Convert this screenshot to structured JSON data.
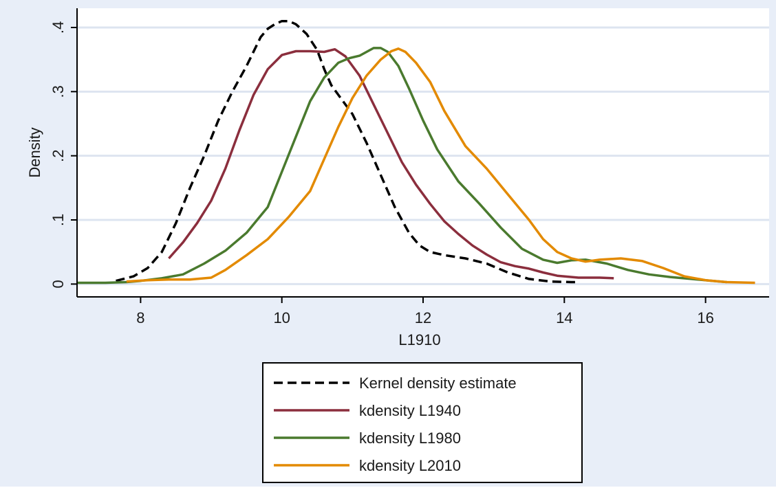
{
  "chart_data": {
    "type": "line",
    "title": "",
    "xlabel": "L1910",
    "ylabel": "Density",
    "xlim": [
      7.1,
      16.9
    ],
    "ylim": [
      -0.02,
      0.43
    ],
    "xticks": [
      8,
      10,
      12,
      14,
      16
    ],
    "xtick_labels": [
      "8",
      "10",
      "12",
      "14",
      "16"
    ],
    "yticks": [
      0,
      0.1,
      0.2,
      0.3,
      0.4
    ],
    "ytick_labels": [
      "0",
      ".1",
      ".2",
      ".3",
      ".4"
    ],
    "grid": true,
    "legend_placement": "bottom-center",
    "colors": {
      "plot_region": "#ffffff",
      "outer_background": "#e8eef8",
      "grid": "#dde4f0"
    },
    "series": [
      {
        "name": "Kernel density estimate",
        "color": "#000000",
        "dash": true,
        "x": [
          7.65,
          7.9,
          8.1,
          8.3,
          8.5,
          8.7,
          8.9,
          9.1,
          9.3,
          9.5,
          9.7,
          9.8,
          9.9,
          10.0,
          10.1,
          10.2,
          10.35,
          10.5,
          10.6,
          10.7,
          10.8,
          11.0,
          11.2,
          11.4,
          11.6,
          11.8,
          11.95,
          12.1,
          12.3,
          12.6,
          12.9,
          13.2,
          13.5,
          13.8,
          14.1,
          14.2
        ],
        "y": [
          0.005,
          0.012,
          0.025,
          0.05,
          0.095,
          0.15,
          0.2,
          0.255,
          0.3,
          0.34,
          0.385,
          0.398,
          0.405,
          0.41,
          0.41,
          0.405,
          0.39,
          0.365,
          0.335,
          0.31,
          0.295,
          0.265,
          0.22,
          0.17,
          0.12,
          0.08,
          0.06,
          0.05,
          0.045,
          0.04,
          0.032,
          0.018,
          0.008,
          0.004,
          0.003,
          0.003
        ]
      },
      {
        "name": "kdensity L1940",
        "color": "#8b2e3d",
        "dash": false,
        "x": [
          8.4,
          8.6,
          8.8,
          9.0,
          9.2,
          9.4,
          9.6,
          9.8,
          10.0,
          10.2,
          10.4,
          10.6,
          10.75,
          10.9,
          11.1,
          11.3,
          11.5,
          11.7,
          11.9,
          12.1,
          12.3,
          12.5,
          12.7,
          12.9,
          13.1,
          13.3,
          13.5,
          13.7,
          13.9,
          14.2,
          14.5,
          14.7
        ],
        "y": [
          0.04,
          0.065,
          0.095,
          0.13,
          0.18,
          0.24,
          0.295,
          0.335,
          0.357,
          0.363,
          0.363,
          0.362,
          0.366,
          0.355,
          0.325,
          0.28,
          0.235,
          0.19,
          0.155,
          0.125,
          0.098,
          0.078,
          0.06,
          0.046,
          0.034,
          0.028,
          0.024,
          0.018,
          0.013,
          0.01,
          0.01,
          0.009
        ]
      },
      {
        "name": "kdensity L1980",
        "color": "#4a7a2e",
        "dash": false,
        "x": [
          7.1,
          7.5,
          7.8,
          8.0,
          8.3,
          8.6,
          8.9,
          9.2,
          9.5,
          9.8,
          10.0,
          10.2,
          10.4,
          10.6,
          10.8,
          10.95,
          11.1,
          11.3,
          11.4,
          11.5,
          11.65,
          11.8,
          12.0,
          12.2,
          12.5,
          12.8,
          13.1,
          13.4,
          13.7,
          13.9,
          14.1,
          14.3,
          14.6,
          14.9,
          15.2,
          15.5,
          15.8,
          16.1,
          16.3
        ],
        "y": [
          0.002,
          0.002,
          0.003,
          0.005,
          0.009,
          0.015,
          0.032,
          0.052,
          0.08,
          0.12,
          0.175,
          0.23,
          0.285,
          0.322,
          0.345,
          0.352,
          0.356,
          0.368,
          0.368,
          0.362,
          0.34,
          0.305,
          0.255,
          0.21,
          0.16,
          0.125,
          0.088,
          0.055,
          0.038,
          0.033,
          0.037,
          0.038,
          0.032,
          0.022,
          0.015,
          0.011,
          0.008,
          0.005,
          0.003
        ]
      },
      {
        "name": "kdensity L2010",
        "color": "#e38a00",
        "dash": false,
        "x": [
          7.8,
          8.1,
          8.4,
          8.7,
          9.0,
          9.2,
          9.5,
          9.8,
          10.1,
          10.4,
          10.6,
          10.8,
          11.0,
          11.2,
          11.4,
          11.55,
          11.65,
          11.75,
          11.9,
          12.1,
          12.3,
          12.6,
          12.9,
          13.2,
          13.5,
          13.7,
          13.9,
          14.1,
          14.3,
          14.5,
          14.8,
          15.1,
          15.4,
          15.7,
          16.0,
          16.3,
          16.7
        ],
        "y": [
          0.004,
          0.006,
          0.007,
          0.007,
          0.01,
          0.022,
          0.045,
          0.07,
          0.105,
          0.145,
          0.195,
          0.245,
          0.29,
          0.325,
          0.35,
          0.363,
          0.367,
          0.362,
          0.345,
          0.315,
          0.27,
          0.215,
          0.18,
          0.14,
          0.1,
          0.07,
          0.05,
          0.04,
          0.035,
          0.038,
          0.04,
          0.036,
          0.025,
          0.012,
          0.006,
          0.003,
          0.002
        ]
      }
    ]
  }
}
